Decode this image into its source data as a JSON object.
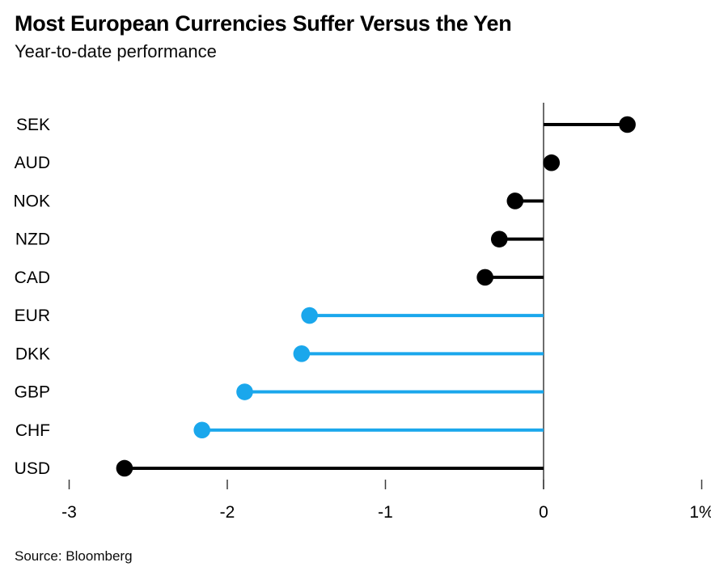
{
  "page": {
    "background_color": "#ffffff"
  },
  "header": {
    "title": "Most European Currencies Suffer Versus the Yen",
    "subtitle": "Year-to-date performance"
  },
  "footer": {
    "source": "Source: Bloomberg"
  },
  "chart_data": {
    "type": "bar",
    "variant": "horizontal-lollipop",
    "title": "Most European Currencies Suffer Versus the Yen",
    "subtitle": "Year-to-date performance",
    "xlabel": "",
    "ylabel": "",
    "unit": "%",
    "xlim": [
      -3,
      1
    ],
    "x_ticks": [
      -3,
      -2,
      -1,
      0,
      1
    ],
    "x_tick_labels": [
      "-3",
      "-2",
      "-1",
      "0",
      "1%"
    ],
    "grid": false,
    "legend": false,
    "zero_baseline": true,
    "categories": [
      "SEK",
      "AUD",
      "NOK",
      "NZD",
      "CAD",
      "EUR",
      "DKK",
      "GBP",
      "CHF",
      "USD"
    ],
    "values": [
      0.53,
      0.05,
      -0.18,
      -0.28,
      -0.37,
      -1.48,
      -1.53,
      -1.89,
      -2.16,
      -2.65
    ],
    "point_color_keys": [
      "default",
      "default",
      "default",
      "default",
      "default",
      "highlight",
      "highlight",
      "highlight",
      "highlight",
      "default"
    ],
    "colors": {
      "default": "#000000",
      "highlight": "#1aa7ec",
      "axis": "#3c3c3c"
    }
  }
}
